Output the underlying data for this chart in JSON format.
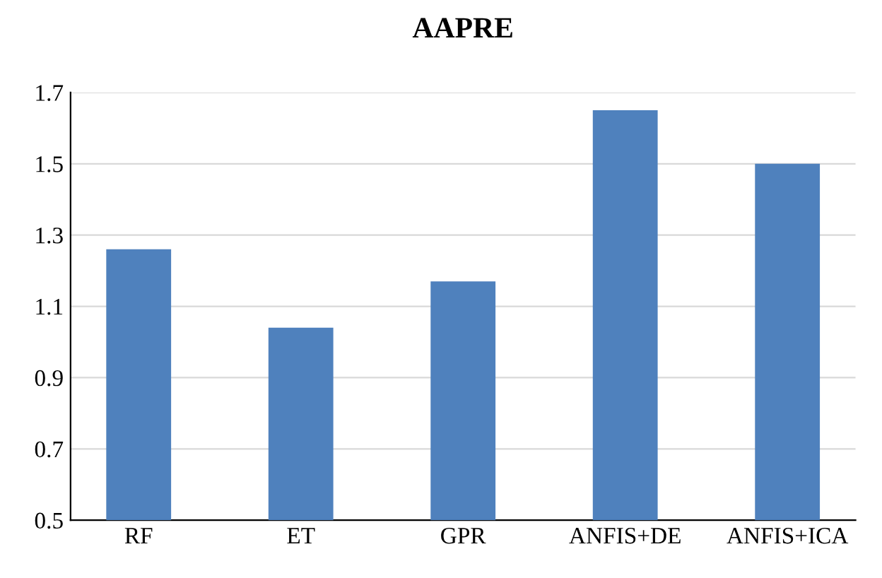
{
  "chart_data": {
    "type": "bar",
    "title": "AAPRE",
    "categories": [
      "RF",
      "ET",
      "GPR",
      "ANFIS+DE",
      "ANFIS+ICA"
    ],
    "values": [
      1.26,
      1.04,
      1.17,
      1.65,
      1.5
    ],
    "color": "#4f81bd",
    "ylim": [
      0.5,
      1.7
    ],
    "yticks": [
      0.5,
      0.7,
      0.9,
      1.1,
      1.3,
      1.5,
      1.7
    ],
    "grid": "y"
  }
}
